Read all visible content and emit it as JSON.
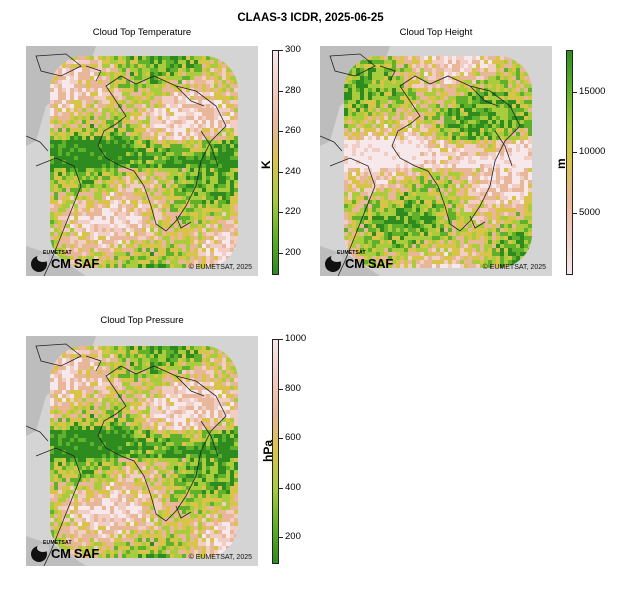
{
  "suptitle": "CLAAS-3 ICDR, 2025-06-25",
  "credit": "© EUMETSAT, 2025",
  "logo": {
    "small": "EUMETSAT",
    "big": "CM SAF"
  },
  "panels": [
    {
      "title": "Cloud Top Temperature",
      "unit": "K",
      "colorbar": {
        "min": 190,
        "max": 300,
        "ticks": [
          200,
          220,
          240,
          260,
          280,
          300
        ],
        "reversed_colormap": true
      },
      "colors": [
        "#2e8b1f",
        "#5fb02a",
        "#a9cc3d",
        "#d9c44a",
        "#e8b79a",
        "#f2cdc3",
        "#f7e8ec"
      ]
    },
    {
      "title": "Cloud Top Height",
      "unit": "m",
      "colorbar": {
        "min": 0,
        "max": 18500,
        "ticks": [
          5000,
          10000,
          15000
        ],
        "reversed_colormap": false
      },
      "colors": [
        "#f7e8ec",
        "#f2cdc3",
        "#e8b79a",
        "#d9c44a",
        "#a9cc3d",
        "#5fb02a",
        "#2e8b1f"
      ]
    },
    {
      "title": "Cloud Top Pressure",
      "unit": "hPa",
      "colorbar": {
        "min": 100,
        "max": 1000,
        "ticks": [
          200,
          400,
          600,
          800,
          1000
        ],
        "reversed_colormap": true
      },
      "colors": [
        "#2e8b1f",
        "#5fb02a",
        "#a9cc3d",
        "#d9c44a",
        "#e8b79a",
        "#f2cdc3",
        "#f7e8ec"
      ]
    }
  ]
}
